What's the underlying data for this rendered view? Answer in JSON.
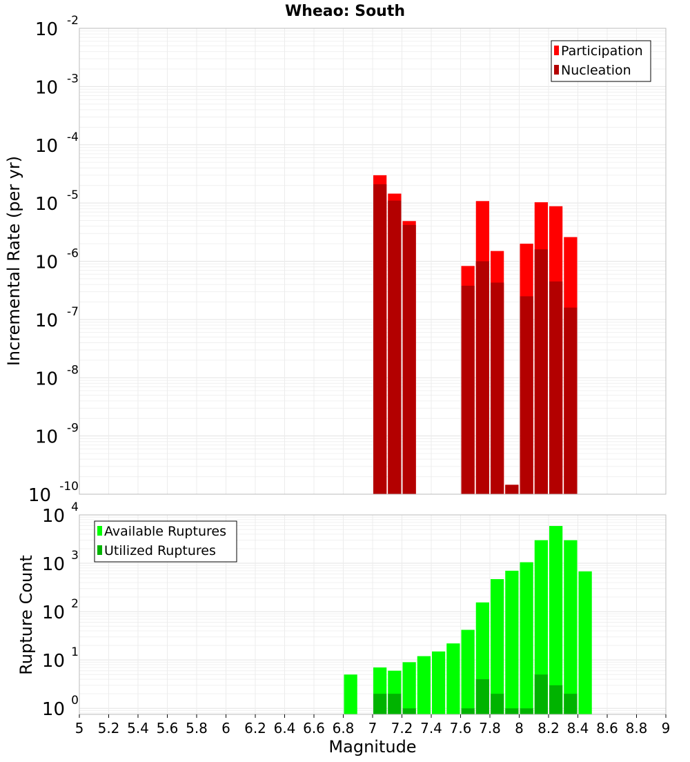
{
  "chart_data": [
    {
      "type": "bar",
      "title": "Wheao: South",
      "xlabel": "",
      "ylabel": "Incremental Rate (per yr)",
      "x_scale": "linear",
      "y_scale": "log",
      "xlim": [
        5,
        9
      ],
      "ylim": [
        1e-10,
        0.01
      ],
      "y_ticks": [
        {
          "base": "10",
          "exp": "-10",
          "value": 1e-10
        },
        {
          "base": "10",
          "exp": "-9",
          "value": 1e-09
        },
        {
          "base": "10",
          "exp": "-8",
          "value": 1e-08
        },
        {
          "base": "10",
          "exp": "-7",
          "value": 1e-07
        },
        {
          "base": "10",
          "exp": "-6",
          "value": 1e-06
        },
        {
          "base": "10",
          "exp": "-5",
          "value": 1e-05
        },
        {
          "base": "10",
          "exp": "-4",
          "value": 0.0001
        },
        {
          "base": "10",
          "exp": "-3",
          "value": 0.001
        },
        {
          "base": "10",
          "exp": "-2",
          "value": 0.01
        }
      ],
      "legend_position": "top-right",
      "grid": true,
      "bar_width": 0.1,
      "series": [
        {
          "name": "Participation",
          "color": "#ff0000",
          "x": [
            7.05,
            7.15,
            7.25,
            7.65,
            7.75,
            7.85,
            7.95,
            8.05,
            8.15,
            8.25,
            8.35
          ],
          "values": [
            3e-05,
            1.45e-05,
            4.9e-06,
            8.3e-07,
            1.08e-05,
            1.5e-06,
            1.45e-10,
            2e-06,
            1.03e-05,
            8.8e-06,
            2.6e-06
          ]
        },
        {
          "name": "Nucleation",
          "color": "#b30000",
          "x": [
            7.05,
            7.15,
            7.25,
            7.65,
            7.75,
            7.85,
            7.95,
            8.05,
            8.15,
            8.25,
            8.35
          ],
          "values": [
            2.1e-05,
            1.1e-05,
            4.2e-06,
            3.8e-07,
            1e-06,
            4.3e-07,
            1.45e-10,
            2.5e-07,
            1.6e-06,
            4.5e-07,
            1.6e-07
          ]
        }
      ]
    },
    {
      "type": "bar",
      "title": "",
      "xlabel": "Magnitude",
      "ylabel": "Rupture Count",
      "x_scale": "linear",
      "y_scale": "log",
      "xlim": [
        5,
        9
      ],
      "ylim": [
        0.75,
        10000
      ],
      "x_ticks": [
        "5",
        "5.2",
        "5.4",
        "5.6",
        "5.8",
        "6",
        "6.2",
        "6.4",
        "6.6",
        "6.8",
        "7",
        "7.2",
        "7.4",
        "7.6",
        "7.8",
        "8",
        "8.2",
        "8.4",
        "8.6",
        "8.8",
        "9"
      ],
      "y_ticks": [
        {
          "base": "10",
          "exp": "0",
          "value": 1
        },
        {
          "base": "10",
          "exp": "1",
          "value": 10
        },
        {
          "base": "10",
          "exp": "2",
          "value": 100
        },
        {
          "base": "10",
          "exp": "3",
          "value": 1000
        },
        {
          "base": "10",
          "exp": "4",
          "value": 10000
        }
      ],
      "legend_position": "top-left",
      "grid": true,
      "bar_width": 0.1,
      "series": [
        {
          "name": "Available Ruptures",
          "color": "#00ff00",
          "x": [
            6.85,
            7.05,
            7.15,
            7.25,
            7.35,
            7.45,
            7.55,
            7.65,
            7.75,
            7.85,
            7.95,
            8.05,
            8.15,
            8.25,
            8.35,
            8.45
          ],
          "values": [
            5,
            7,
            6,
            9,
            12,
            15,
            22,
            42,
            155,
            470,
            700,
            1050,
            3000,
            5900,
            3000,
            680
          ]
        },
        {
          "name": "Utilized Ruptures",
          "color": "#00b300",
          "x": [
            7.05,
            7.15,
            7.25,
            7.65,
            7.75,
            7.85,
            7.95,
            8.05,
            8.15,
            8.25,
            8.35
          ],
          "values": [
            2,
            2,
            1,
            1,
            4,
            2,
            1,
            1,
            5,
            3,
            2
          ]
        }
      ]
    }
  ]
}
